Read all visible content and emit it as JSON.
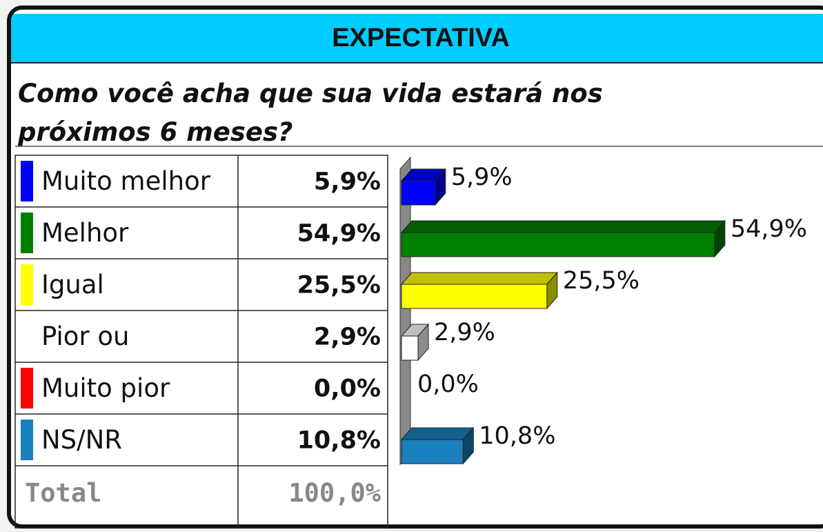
{
  "header": {
    "title": "EXPECTATIVA",
    "question": "Como você acha que sua vida estará nos próximos 6 meses?"
  },
  "chart_data": {
    "type": "bar",
    "orientation": "horizontal",
    "categories": [
      "Muito melhor",
      "Melhor",
      "Igual",
      "Pior ou",
      "Muito pior",
      "NS/NR"
    ],
    "values": [
      5.9,
      54.9,
      25.5,
      2.9,
      0.0,
      10.8
    ],
    "value_labels": [
      "5,9%",
      "54,9%",
      "25,5%",
      "2,9%",
      "0,0%",
      "10,8%"
    ],
    "colors": [
      "#0000ff",
      "#008000",
      "#ffff00",
      "#ffffff",
      "#ff0000",
      "#1a80bf"
    ],
    "xlim": [
      0,
      60
    ],
    "total_label": "Total",
    "total_value_label": "100,0%"
  }
}
